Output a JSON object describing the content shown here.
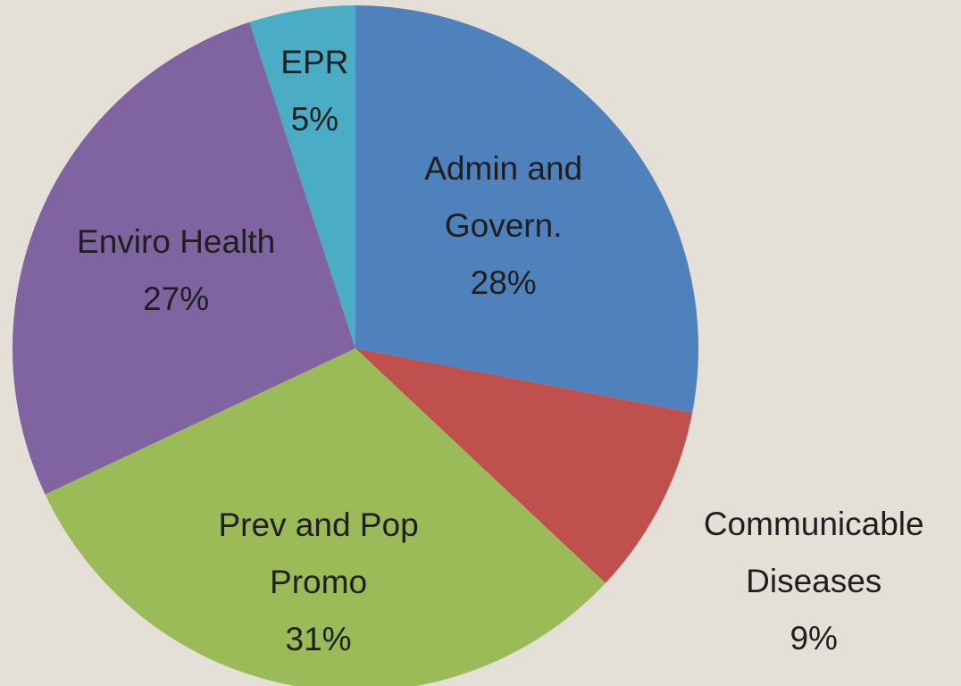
{
  "chart_data": {
    "type": "pie",
    "categories": [
      "Admin and\nGovern.",
      "Communicable\nDiseases",
      "Prev and Pop\nPromo",
      "Enviro Health",
      "EPR"
    ],
    "values": [
      28,
      9,
      31,
      27,
      5
    ],
    "value_labels": [
      "28%",
      "9%",
      "31%",
      "27%",
      "5%"
    ],
    "colors": [
      "#4f81bd",
      "#c0504d",
      "#9bbb59",
      "#8064a2",
      "#4bacc6"
    ]
  }
}
